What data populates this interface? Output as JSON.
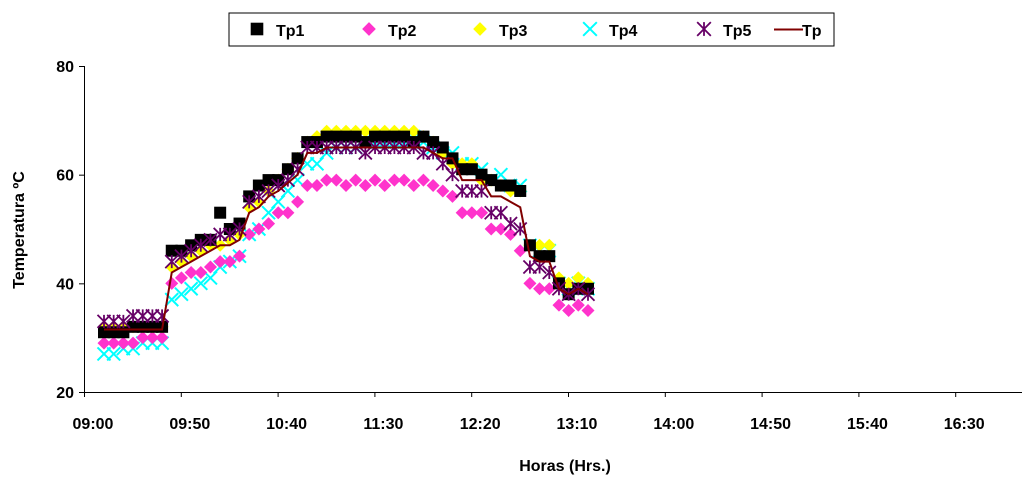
{
  "chart_data": {
    "type": "scatter",
    "title": "",
    "xlabel": "Horas (Hrs.)",
    "ylabel": "Temperatura ºC",
    "ylim": [
      20,
      80
    ],
    "yticks": [
      "20",
      "40",
      "60",
      "80"
    ],
    "xticks": [
      "09:00",
      "09:50",
      "10:40",
      "11:30",
      "12:20",
      "13:10",
      "14:00",
      "14:50",
      "15:40",
      "16:30"
    ],
    "x_start": "09:00",
    "x_step_minutes": 5,
    "grid": false,
    "legend_position": "top",
    "series": [
      {
        "name": "Tp1",
        "marker": "square",
        "color": "#000000",
        "values": [
          31,
          31,
          31,
          32,
          32,
          32,
          32,
          46,
          46,
          47,
          48,
          48,
          53,
          50,
          51,
          56,
          58,
          59,
          59,
          61,
          63,
          66,
          66,
          67,
          67,
          67,
          67,
          66,
          67,
          67,
          67,
          67,
          66,
          67,
          66,
          65,
          63,
          61,
          61,
          60,
          59,
          58,
          58,
          57,
          47,
          45,
          45,
          40,
          38,
          39,
          39
        ]
      },
      {
        "name": "Tp2",
        "marker": "diamond",
        "color": "#ff33cc",
        "values": [
          29,
          29,
          29,
          29,
          30,
          30,
          30,
          40,
          41,
          42,
          42,
          43,
          44,
          44,
          45,
          49,
          50,
          51,
          53,
          53,
          55,
          58,
          58,
          59,
          59,
          58,
          59,
          58,
          59,
          58,
          59,
          59,
          58,
          59,
          58,
          57,
          56,
          53,
          53,
          53,
          50,
          50,
          49,
          46,
          40,
          39,
          39,
          36,
          35,
          36,
          35
        ]
      },
      {
        "name": "Tp3",
        "marker": "diamond",
        "color": "#ffff00",
        "values": [
          32,
          32,
          32,
          32,
          32,
          32,
          32,
          43,
          44,
          45,
          46,
          47,
          47,
          48,
          49,
          54,
          55,
          57,
          59,
          61,
          63,
          66,
          67,
          68,
          68,
          68,
          68,
          68,
          68,
          68,
          68,
          68,
          68,
          67,
          66,
          64,
          62,
          62,
          62,
          59,
          59,
          58,
          57,
          57,
          47,
          47,
          47,
          41,
          40,
          41,
          40
        ]
      },
      {
        "name": "Tp4",
        "marker": "x",
        "color": "#00ffff",
        "values": [
          27,
          27,
          28,
          28,
          29,
          29,
          29,
          37,
          38,
          39,
          40,
          41,
          43,
          44,
          45,
          49,
          50,
          53,
          55,
          57,
          59,
          62,
          62,
          64,
          65,
          65,
          65,
          66,
          66,
          66,
          66,
          66,
          67,
          66,
          65,
          64,
          64,
          62,
          62,
          61,
          59,
          60,
          58,
          58,
          47,
          46,
          46,
          40,
          39,
          40,
          39
        ]
      },
      {
        "name": "Tp5",
        "marker": "asterisk",
        "color": "#660066",
        "values": [
          33,
          33,
          33,
          34,
          34,
          34,
          34,
          44,
          45,
          46,
          47,
          48,
          49,
          49,
          50,
          55,
          56,
          57,
          58,
          59,
          61,
          65,
          65,
          65,
          65,
          65,
          65,
          64,
          65,
          65,
          65,
          65,
          65,
          64,
          64,
          62,
          60,
          57,
          57,
          57,
          53,
          53,
          51,
          50,
          43,
          43,
          42,
          39,
          38,
          39,
          38
        ]
      },
      {
        "name": "Tp",
        "marker": "line",
        "color": "#800000",
        "values": [
          31.5,
          31.5,
          31.5,
          31.5,
          31.5,
          31.5,
          31.5,
          42,
          43,
          44,
          45,
          46,
          47,
          47,
          48,
          53,
          54,
          56,
          57,
          58.5,
          60,
          64,
          64,
          65,
          65,
          65,
          65,
          65,
          65,
          65,
          65,
          65,
          65,
          65,
          64,
          63,
          63,
          59,
          59,
          59,
          56,
          56,
          55,
          54,
          45,
          44,
          44,
          39,
          38,
          39,
          38
        ]
      }
    ]
  }
}
